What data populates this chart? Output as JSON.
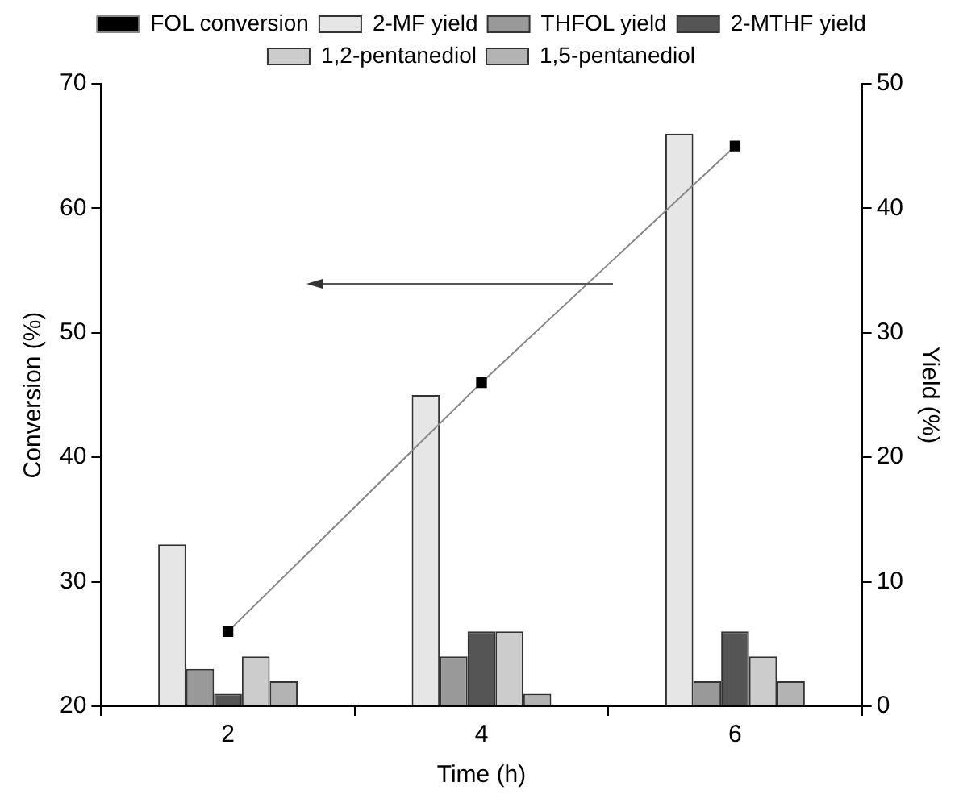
{
  "chart_data": {
    "type": "bar",
    "xlabel": "Time (h)",
    "ylabel": "Conversion (%)",
    "y2label": "Yield (%)",
    "categories": [
      "2",
      "4",
      "6"
    ],
    "series": [
      {
        "name": "FOL conversion",
        "type": "line",
        "color": "#000000",
        "values": [
          26,
          46,
          65
        ],
        "marker": "square"
      },
      {
        "name": "2-MF yield",
        "color": "#e6e6e6",
        "axis": "y2",
        "values": [
          13,
          25,
          46
        ]
      },
      {
        "name": "THFOL yield",
        "color": "#999999",
        "axis": "y2",
        "values": [
          3,
          4,
          2
        ]
      },
      {
        "name": "2-MTHF yield",
        "color": "#555555",
        "axis": "y2",
        "values": [
          1,
          6,
          6
        ]
      },
      {
        "name": "1,2-pentanediol",
        "color": "#cccccc",
        "axis": "y2",
        "values": [
          4,
          6,
          4
        ]
      },
      {
        "name": "1,5-pentanediol",
        "color": "#b3b3b3",
        "axis": "y2",
        "values": [
          2,
          1,
          2
        ]
      }
    ],
    "ylim": [
      20,
      70
    ],
    "yticks": [
      20,
      30,
      40,
      50,
      60,
      70
    ],
    "y2lim": [
      0,
      50
    ],
    "y2ticks": [
      0,
      10,
      20,
      30,
      40,
      50
    ],
    "grid": false,
    "legend": "top"
  }
}
